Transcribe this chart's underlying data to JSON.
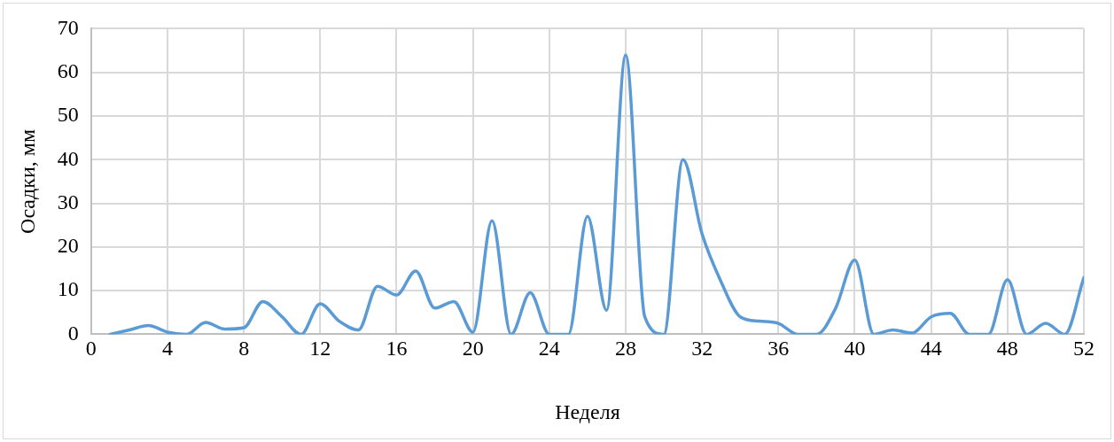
{
  "chart_data": {
    "type": "line",
    "xlabel": "Неделя",
    "ylabel": "Осадки, мм",
    "x": [
      1,
      2,
      3,
      4,
      5,
      6,
      7,
      8,
      9,
      10,
      11,
      12,
      13,
      14,
      15,
      16,
      17,
      18,
      19,
      20,
      21,
      22,
      23,
      24,
      25,
      26,
      27,
      28,
      29,
      30,
      31,
      32,
      33,
      34,
      35,
      36,
      37,
      38,
      39,
      40,
      41,
      42,
      43,
      44,
      45,
      46,
      47,
      48,
      49,
      50,
      51,
      52
    ],
    "series": [
      {
        "color": "#5b9bd5",
        "values": [
          0,
          1,
          2,
          0.5,
          0,
          2.7,
          1.2,
          1.5,
          7.5,
          4,
          0,
          7,
          3,
          1,
          11,
          9,
          14.5,
          6,
          7.5,
          0.5,
          26,
          0,
          9.5,
          0,
          0,
          27,
          5.5,
          64,
          4,
          0,
          40,
          23,
          12,
          4,
          3,
          2.5,
          0,
          0,
          6,
          17,
          0,
          1,
          0.3,
          4,
          4.8,
          0,
          0,
          12.5,
          0,
          2.5,
          0,
          13
        ]
      }
    ],
    "xlim": [
      0,
      52
    ],
    "xticks": [
      0,
      4,
      8,
      12,
      16,
      20,
      24,
      28,
      32,
      36,
      40,
      44,
      48,
      52
    ],
    "ylim": [
      0,
      70
    ],
    "yticks": [
      0,
      10,
      20,
      30,
      40,
      50,
      60,
      70
    ],
    "grid": true,
    "marker": "none",
    "line_style": "solid"
  }
}
